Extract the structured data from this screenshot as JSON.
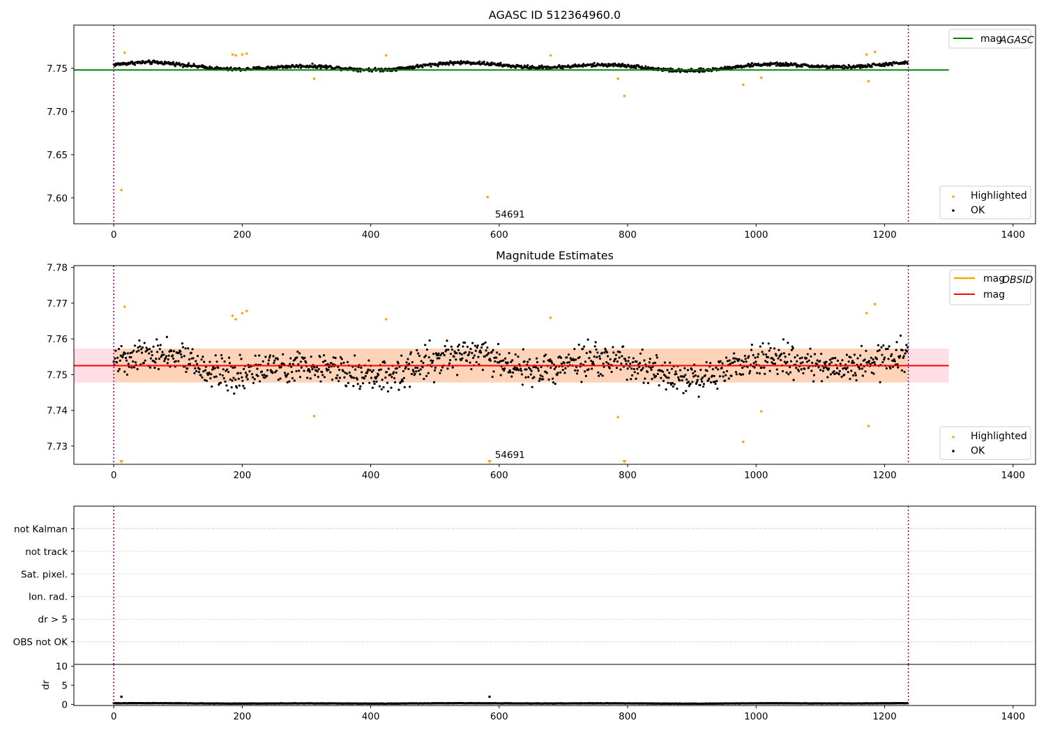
{
  "chart_data": [
    {
      "type": "scatter",
      "title": "AGASC ID 512364960.0",
      "xlabel": "",
      "ylabel": "",
      "xlim": [
        -62,
        1435
      ],
      "ylim": [
        7.57,
        7.8
      ],
      "xticks": [
        0,
        200,
        400,
        600,
        800,
        1000,
        1200,
        1400
      ],
      "xtick_labels": [
        "0",
        "200",
        "400",
        "600",
        "800",
        "1000",
        "1200",
        "1400"
      ],
      "yticks": [
        7.6,
        7.65,
        7.7,
        7.75
      ],
      "ytick_labels": [
        "7.60",
        "7.65",
        "7.70",
        "7.75"
      ],
      "vlines": [
        0,
        1237
      ],
      "annotations": [
        {
          "text": "54691",
          "x": 600,
          "y": 7.58
        }
      ],
      "lines": [
        {
          "name": "mag",
          "subscript": "AGASC",
          "color": "#008000",
          "y": 7.748,
          "x_range": [
            -62,
            1300
          ]
        }
      ],
      "ok_series": {
        "name": "OK",
        "color": "#000000",
        "n": 1240,
        "x_range": [
          0,
          1236
        ],
        "base": 7.752,
        "amp": 0.005,
        "noise": 0.002
      },
      "series": [
        {
          "name": "Highlighted",
          "color": "#FFA500",
          "x": [
            12,
            17,
            185,
            190,
            200,
            207,
            312,
            424,
            582,
            680,
            785,
            795,
            980,
            1008,
            1172,
            1175,
            1185
          ],
          "y": [
            7.609,
            7.768,
            7.766,
            7.765,
            7.766,
            7.767,
            7.738,
            7.765,
            7.601,
            7.765,
            7.738,
            7.718,
            7.731,
            7.739,
            7.766,
            7.735,
            7.769
          ]
        }
      ],
      "legends": [
        [
          "mag_AGASC"
        ],
        [
          "Highlighted",
          "OK"
        ]
      ]
    },
    {
      "type": "scatter",
      "title": "Magnitude Estimates",
      "xlabel": "",
      "ylabel": "",
      "xlim": [
        -62,
        1435
      ],
      "ylim": [
        7.7249,
        7.7805
      ],
      "xticks": [
        0,
        200,
        400,
        600,
        800,
        1000,
        1200,
        1400
      ],
      "xtick_labels": [
        "0",
        "200",
        "400",
        "600",
        "800",
        "1000",
        "1200",
        "1400"
      ],
      "yticks": [
        7.73,
        7.74,
        7.75,
        7.76,
        7.77,
        7.78
      ],
      "ytick_labels": [
        "7.73",
        "7.74",
        "7.75",
        "7.76",
        "7.77",
        "7.78"
      ],
      "vlines": [
        0,
        1237
      ],
      "annotations": [
        {
          "text": "54691",
          "x": 600,
          "y": 7.7259
        }
      ],
      "bands": [
        {
          "y0": 7.7478,
          "y1": 7.7573,
          "x_range": [
            -62,
            1300
          ],
          "color": "#ffc0cb",
          "opacity": 0.5
        },
        {
          "y0": 7.7478,
          "y1": 7.7573,
          "x_range": [
            0,
            1237
          ],
          "color": "#FFA500",
          "opacity": 0.2
        }
      ],
      "lines": [
        {
          "name": "mag",
          "subscript": "OBSID",
          "color": "#FFA500",
          "y": 7.7525,
          "x_range": [
            0,
            1237
          ]
        },
        {
          "name": "mag",
          "color": "#ff0000",
          "y": 7.7525,
          "x_range": [
            -62,
            1300
          ]
        }
      ],
      "ok_series": {
        "name": "OK",
        "color": "#000000",
        "n": 1240,
        "x_range": [
          0,
          1236
        ],
        "base": 7.7525,
        "amp": 0.0035,
        "noise": 0.0045
      },
      "series": [
        {
          "name": "Highlighted",
          "color": "#FFA500",
          "x": [
            17,
            185,
            190,
            200,
            207,
            312,
            424,
            680,
            785,
            980,
            1008,
            1175,
            1185,
            1172
          ],
          "y": [
            7.769,
            7.7665,
            7.7655,
            7.7672,
            7.7678,
            7.7384,
            7.7655,
            7.7659,
            7.7381,
            7.7312,
            7.7397,
            7.7356,
            7.7697,
            7.7672
          ]
        }
      ],
      "offscale_markers": {
        "color": "#FFA500",
        "x": [
          12,
          585,
          795
        ],
        "y_at": "bottom"
      },
      "legends": [
        [
          "mag_OBSID",
          "mag"
        ],
        [
          "Highlighted",
          "OK"
        ]
      ]
    },
    {
      "type": "scatter",
      "title": "",
      "xlabel": "",
      "ylabel": "",
      "xlim": [
        -62,
        1435
      ],
      "ylim": [
        0,
        7
      ],
      "yticks": [
        1,
        2,
        3,
        4,
        5,
        6
      ],
      "ytick_labels": [
        "OBS not OK",
        "dr > 5",
        "Ion. rad.",
        "Sat. pixel.",
        "not track",
        "not Kalman"
      ],
      "grid": "horizontal dotted",
      "vlines": [
        0,
        1237
      ],
      "series": []
    },
    {
      "type": "scatter",
      "title": "",
      "xlabel": "",
      "ylabel": "dr",
      "xlim": [
        -62,
        1435
      ],
      "ylim": [
        -0.3,
        10.5
      ],
      "xticks": [
        0,
        200,
        400,
        600,
        800,
        1000,
        1200,
        1400
      ],
      "xtick_labels": [
        "0",
        "200",
        "400",
        "600",
        "800",
        "1000",
        "1200",
        "1400"
      ],
      "yticks": [
        0,
        5,
        10
      ],
      "ytick_labels": [
        "0",
        "5",
        "10"
      ],
      "vlines": [
        0,
        1237
      ],
      "ok_series": {
        "name": "dr",
        "color": "#000000",
        "n": 1240,
        "x_range": [
          0,
          1236
        ],
        "base": 0.25,
        "amp": 0.06,
        "noise": 0.05
      },
      "series": [
        {
          "name": "",
          "color": "#000000",
          "x": [
            12,
            585
          ],
          "y": [
            2.0,
            2.0
          ]
        }
      ]
    }
  ]
}
